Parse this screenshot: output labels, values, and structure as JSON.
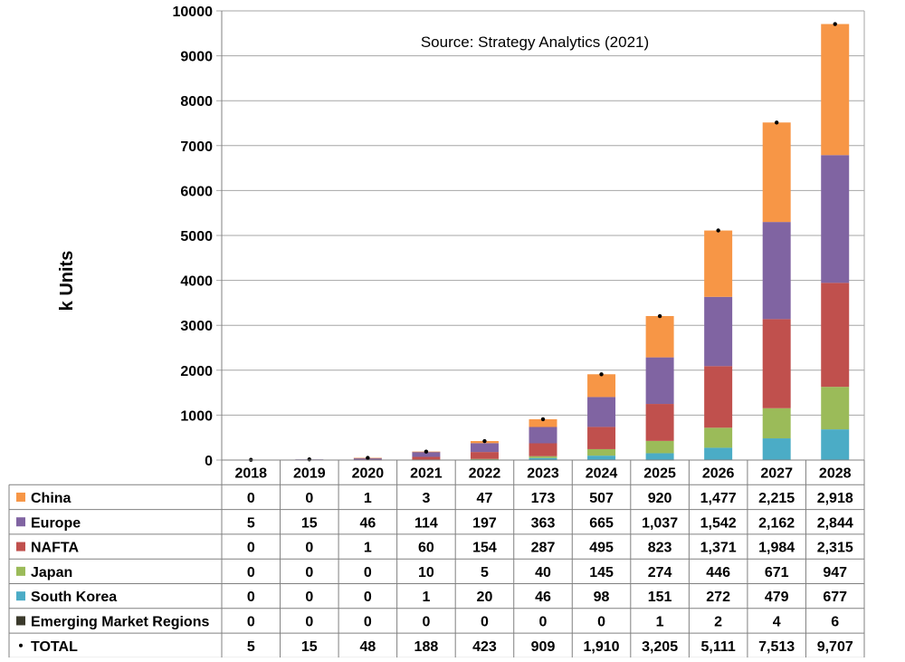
{
  "chart_data": {
    "type": "bar",
    "stacked": true,
    "title": "",
    "annotation": "Source:  Strategy Analytics (2021)",
    "ylabel": "k Units",
    "xlabel": "",
    "ylim": [
      0,
      10000
    ],
    "yticks": [
      "0",
      "1000",
      "2000",
      "3000",
      "4000",
      "5000",
      "6000",
      "7000",
      "8000",
      "9000",
      "10000"
    ],
    "grid": "horizontal",
    "legend": "data-table",
    "categories": [
      "2018",
      "2019",
      "2020",
      "2021",
      "2022",
      "2023",
      "2024",
      "2025",
      "2026",
      "2027",
      "2028"
    ],
    "series": [
      {
        "name": "Emerging Market Regions",
        "color": "#3b3a2c",
        "values": [
          0,
          0,
          0,
          0,
          0,
          0,
          0,
          1,
          2,
          4,
          6
        ],
        "labels": [
          "0",
          "0",
          "0",
          "0",
          "0",
          "0",
          "0",
          "1",
          "2",
          "4",
          "6"
        ]
      },
      {
        "name": "South Korea",
        "color": "#4bacc6",
        "values": [
          0,
          0,
          0,
          1,
          20,
          46,
          98,
          151,
          272,
          479,
          677
        ],
        "labels": [
          "0",
          "0",
          "0",
          "1",
          "20",
          "46",
          "98",
          "151",
          "272",
          "479",
          "677"
        ]
      },
      {
        "name": "Japan",
        "color": "#9bbb59",
        "values": [
          0,
          0,
          0,
          10,
          5,
          40,
          145,
          274,
          446,
          671,
          947
        ],
        "labels": [
          "0",
          "0",
          "0",
          "10",
          "5",
          "40",
          "145",
          "274",
          "446",
          "671",
          "947"
        ]
      },
      {
        "name": "NAFTA",
        "color": "#c0504d",
        "values": [
          0,
          0,
          1,
          60,
          154,
          287,
          495,
          823,
          1371,
          1984,
          2315
        ],
        "labels": [
          "0",
          "0",
          "1",
          "60",
          "154",
          "287",
          "495",
          "823",
          "1,371",
          "1,984",
          "2,315"
        ]
      },
      {
        "name": "Europe",
        "color": "#8064a2",
        "values": [
          5,
          15,
          46,
          114,
          197,
          363,
          665,
          1037,
          1542,
          2162,
          2844
        ],
        "labels": [
          "5",
          "15",
          "46",
          "114",
          "197",
          "363",
          "665",
          "1,037",
          "1,542",
          "2,162",
          "2,844"
        ]
      },
      {
        "name": "China",
        "color": "#f79646",
        "values": [
          0,
          0,
          1,
          3,
          47,
          173,
          507,
          920,
          1477,
          2215,
          2918
        ],
        "labels": [
          "0",
          "0",
          "1",
          "3",
          "47",
          "173",
          "507",
          "920",
          "1,477",
          "2,215",
          "2,918"
        ]
      }
    ],
    "total": {
      "name": "TOTAL",
      "marker": "point",
      "color": "#000000",
      "values": [
        5,
        15,
        48,
        188,
        423,
        909,
        1910,
        3205,
        5111,
        7513,
        9707
      ],
      "labels": [
        "5",
        "15",
        "48",
        "188",
        "423",
        "909",
        "1,910",
        "3,205",
        "5,111",
        "7,513",
        "9,707"
      ]
    },
    "table_row_order": [
      "China",
      "Europe",
      "NAFTA",
      "Japan",
      "South Korea",
      "Emerging Market Regions"
    ]
  }
}
